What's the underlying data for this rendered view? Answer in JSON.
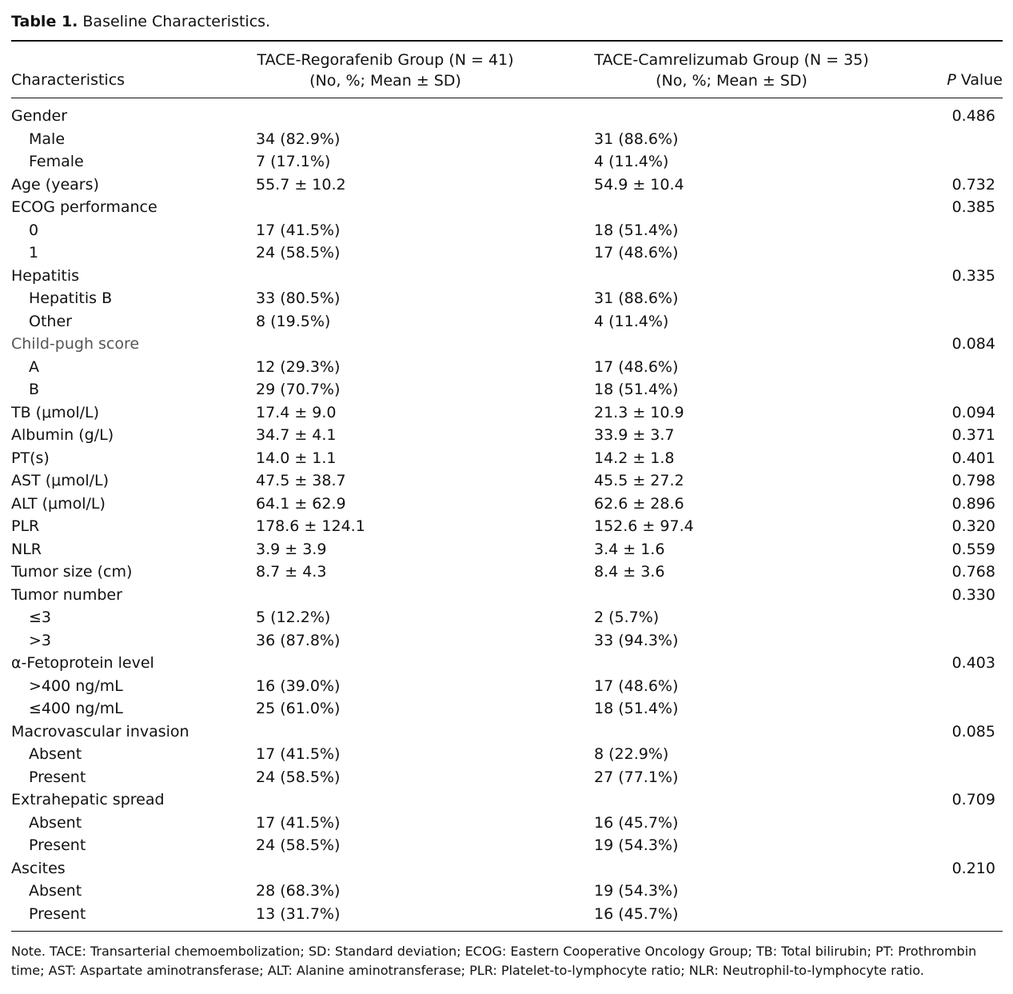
{
  "caption": {
    "label": "Table 1.",
    "title": "Baseline Characteristics."
  },
  "header": {
    "characteristics": "Characteristics",
    "group1_line1": "TACE-Regorafenib Group (N = 41)",
    "group1_line2": "(No, %; Mean ± SD)",
    "group2_line1": "TACE-Camrelizumab Group (N = 35)",
    "group2_line2": "(No, %; Mean ± SD)",
    "p_italic": "P",
    "p_rest": " Value"
  },
  "rows": [
    {
      "label": "Gender",
      "g1": "",
      "g2": "",
      "p": "0.486",
      "indent": false
    },
    {
      "label": "Male",
      "g1": "34 (82.9%)",
      "g2": "31 (88.6%)",
      "p": "",
      "indent": true
    },
    {
      "label": "Female",
      "g1": "7 (17.1%)",
      "g2": "4 (11.4%)",
      "p": "",
      "indent": true
    },
    {
      "label": "Age (years)",
      "g1": "55.7 ± 10.2",
      "g2": "54.9 ± 10.4",
      "p": "0.732",
      "indent": false
    },
    {
      "label": "ECOG performance",
      "g1": "",
      "g2": "",
      "p": "0.385",
      "indent": false
    },
    {
      "label": "0",
      "g1": "17 (41.5%)",
      "g2": "18 (51.4%)",
      "p": "",
      "indent": true
    },
    {
      "label": "1",
      "g1": "24 (58.5%)",
      "g2": "17 (48.6%)",
      "p": "",
      "indent": true
    },
    {
      "label": "Hepatitis",
      "g1": "",
      "g2": "",
      "p": "0.335",
      "indent": false
    },
    {
      "label": "Hepatitis B",
      "g1": "33 (80.5%)",
      "g2": "31 (88.6%)",
      "p": "",
      "indent": true
    },
    {
      "label": "Other",
      "g1": "8 (19.5%)",
      "g2": "4 (11.4%)",
      "p": "",
      "indent": true
    },
    {
      "label": "Child-pugh score",
      "g1": "",
      "g2": "",
      "p": "0.084",
      "indent": false,
      "gray": true
    },
    {
      "label": "A",
      "g1": "12 (29.3%)",
      "g2": "17 (48.6%)",
      "p": "",
      "indent": true
    },
    {
      "label": "B",
      "g1": "29 (70.7%)",
      "g2": "18 (51.4%)",
      "p": "",
      "indent": true
    },
    {
      "label": "TB (μmol/L)",
      "g1": "17.4 ± 9.0",
      "g2": "21.3 ± 10.9",
      "p": "0.094",
      "indent": false
    },
    {
      "label": "Albumin (g/L)",
      "g1": "34.7 ± 4.1",
      "g2": "33.9 ± 3.7",
      "p": "0.371",
      "indent": false
    },
    {
      "label": "PT(s)",
      "g1": "14.0 ± 1.1",
      "g2": "14.2 ± 1.8",
      "p": "0.401",
      "indent": false
    },
    {
      "label": "AST (μmol/L)",
      "g1": "47.5 ± 38.7",
      "g2": "45.5 ± 27.2",
      "p": "0.798",
      "indent": false
    },
    {
      "label": "ALT (μmol/L)",
      "g1": "64.1 ± 62.9",
      "g2": "62.6 ± 28.6",
      "p": "0.896",
      "indent": false
    },
    {
      "label": "PLR",
      "g1": "178.6 ± 124.1",
      "g2": "152.6 ± 97.4",
      "p": "0.320",
      "indent": false
    },
    {
      "label": "NLR",
      "g1": "3.9 ± 3.9",
      "g2": "3.4 ± 1.6",
      "p": "0.559",
      "indent": false
    },
    {
      "label": "Tumor size (cm)",
      "g1": "8.7 ± 4.3",
      "g2": "8.4 ± 3.6",
      "p": "0.768",
      "indent": false
    },
    {
      "label": "Tumor number",
      "g1": "",
      "g2": "",
      "p": "0.330",
      "indent": false
    },
    {
      "label": "≤3",
      "g1": "5 (12.2%)",
      "g2": "2 (5.7%)",
      "p": "",
      "indent": true
    },
    {
      "label": ">3",
      "g1": "36 (87.8%)",
      "g2": "33 (94.3%)",
      "p": "",
      "indent": true
    },
    {
      "label": "α-Fetoprotein level",
      "g1": "",
      "g2": "",
      "p": "0.403",
      "indent": false
    },
    {
      "label": ">400 ng/mL",
      "g1": "16 (39.0%)",
      "g2": "17 (48.6%)",
      "p": "",
      "indent": true
    },
    {
      "label": "≤400 ng/mL",
      "g1": "25 (61.0%)",
      "g2": "18 (51.4%)",
      "p": "",
      "indent": true
    },
    {
      "label": "Macrovascular invasion",
      "g1": "",
      "g2": "",
      "p": "0.085",
      "indent": false
    },
    {
      "label": "Absent",
      "g1": "17 (41.5%)",
      "g2": "8 (22.9%)",
      "p": "",
      "indent": true
    },
    {
      "label": "Present",
      "g1": "24 (58.5%)",
      "g2": "27 (77.1%)",
      "p": "",
      "indent": true
    },
    {
      "label": "Extrahepatic spread",
      "g1": "",
      "g2": "",
      "p": "0.709",
      "indent": false
    },
    {
      "label": "Absent",
      "g1": "17 (41.5%)",
      "g2": "16 (45.7%)",
      "p": "",
      "indent": true
    },
    {
      "label": "Present",
      "g1": "24 (58.5%)",
      "g2": "19 (54.3%)",
      "p": "",
      "indent": true
    },
    {
      "label": "Ascites",
      "g1": "",
      "g2": "",
      "p": "0.210",
      "indent": false
    },
    {
      "label": "Absent",
      "g1": "28 (68.3%)",
      "g2": "19 (54.3%)",
      "p": "",
      "indent": true
    },
    {
      "label": "Present",
      "g1": "13 (31.7%)",
      "g2": "16 (45.7%)",
      "p": "",
      "indent": true
    }
  ],
  "note": "Note. TACE: Transarterial chemoembolization; SD: Standard deviation; ECOG: Eastern Cooperative Oncology Group; TB: Total bilirubin; PT: Prothrombin time; AST: Aspartate aminotransferase; ALT: Alanine aminotransferase; PLR: Platelet-to-lymphocyte ratio; NLR: Neutrophil-to-lymphocyte ratio."
}
